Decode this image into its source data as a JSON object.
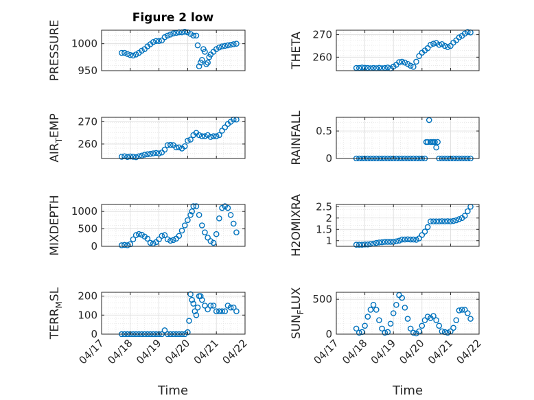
{
  "title": "Figure 2 low",
  "colors": {
    "marker": "#0072BD",
    "axis": "#262626",
    "grid": "#dcdcdc"
  },
  "x_axis": {
    "label": "Time",
    "tick_labels": [
      "04/17",
      "04/18",
      "04/19",
      "04/20",
      "04/21",
      "04/22"
    ],
    "tick_values": [
      0,
      1,
      2,
      3,
      4,
      5
    ]
  },
  "chart_data": [
    {
      "type": "scatter",
      "ylabel": "PRESSURE",
      "ylim": [
        950,
        1025
      ],
      "yticks": [
        950,
        1000
      ],
      "ytick_labels": [
        "950",
        "1000"
      ],
      "x": [
        0.7,
        0.8,
        0.9,
        1.0,
        1.1,
        1.2,
        1.3,
        1.4,
        1.5,
        1.6,
        1.7,
        1.8,
        1.9,
        2.0,
        2.1,
        2.2,
        2.3,
        2.4,
        2.5,
        2.6,
        2.7,
        2.8,
        2.9,
        3.0,
        3.1,
        3.2,
        3.3,
        3.35,
        3.4,
        3.45,
        3.5,
        3.55,
        3.6,
        3.65,
        3.7,
        3.75,
        3.8,
        3.9,
        4.0,
        4.1,
        4.2,
        4.3,
        4.4,
        4.5,
        4.6,
        4.7
      ],
      "y": [
        983,
        983,
        981,
        979,
        978,
        980,
        983,
        987,
        990,
        995,
        999,
        1003,
        1005,
        1005,
        1006,
        1012,
        1015,
        1017,
        1019,
        1020,
        1021,
        1021,
        1022,
        1021,
        1018,
        1015,
        1015,
        997,
        958,
        965,
        970,
        990,
        985,
        962,
        965,
        975,
        980,
        985,
        990,
        993,
        995,
        996,
        997,
        998,
        999,
        1000
      ]
    },
    {
      "type": "scatter",
      "ylabel": "THETA",
      "ylim": [
        254,
        272
      ],
      "yticks": [
        260,
        270
      ],
      "ytick_labels": [
        "260",
        "270"
      ],
      "x": [
        0.7,
        0.8,
        0.9,
        1.0,
        1.1,
        1.2,
        1.3,
        1.4,
        1.5,
        1.6,
        1.7,
        1.8,
        1.9,
        2.0,
        2.1,
        2.2,
        2.3,
        2.4,
        2.5,
        2.6,
        2.7,
        2.8,
        2.9,
        3.0,
        3.1,
        3.2,
        3.3,
        3.4,
        3.5,
        3.6,
        3.7,
        3.8,
        3.9,
        4.0,
        4.1,
        4.2,
        4.3,
        4.4,
        4.5,
        4.6,
        4.7
      ],
      "y": [
        255.2,
        255.2,
        255.4,
        255.3,
        255.2,
        255.1,
        255.2,
        255.1,
        255.3,
        255.1,
        255.2,
        255.4,
        255,
        255.8,
        256.6,
        257.8,
        258,
        257.6,
        257,
        256.2,
        255.7,
        258,
        260.5,
        262,
        263,
        264,
        265.5,
        266,
        266.3,
        265.5,
        265.8,
        265,
        264.5,
        265,
        266.5,
        267.5,
        268.8,
        269.5,
        270.5,
        271.2,
        271
      ]
    },
    {
      "type": "scatter",
      "ylabel": "AIR_TEMP",
      "ylim": [
        253.5,
        272
      ],
      "yticks": [
        260,
        270
      ],
      "ytick_labels": [
        "260",
        "270"
      ],
      "x": [
        0.7,
        0.8,
        0.9,
        1.0,
        1.1,
        1.2,
        1.3,
        1.4,
        1.5,
        1.6,
        1.7,
        1.8,
        1.9,
        2.0,
        2.1,
        2.2,
        2.3,
        2.4,
        2.5,
        2.6,
        2.7,
        2.8,
        2.9,
        3.0,
        3.1,
        3.2,
        3.3,
        3.4,
        3.5,
        3.6,
        3.7,
        3.8,
        3.9,
        4.0,
        4.1,
        4.2,
        4.3,
        4.4,
        4.5,
        4.6,
        4.7
      ],
      "y": [
        254.3,
        254.5,
        254.2,
        254.4,
        254.3,
        254.1,
        254.5,
        254.8,
        255.2,
        255.4,
        255.6,
        255.8,
        256,
        255.8,
        256.2,
        257.5,
        259.5,
        259.6,
        259.5,
        258.5,
        258.5,
        258,
        259,
        261.5,
        262,
        264,
        265,
        264,
        263.5,
        263.5,
        264,
        263.2,
        263.5,
        263.5,
        264,
        266,
        267.5,
        269,
        270,
        271,
        271
      ]
    },
    {
      "type": "scatter",
      "ylabel": "RAINFALL",
      "ylim": [
        0,
        0.75
      ],
      "yticks": [
        0,
        0.5
      ],
      "ytick_labels": [
        "0",
        "0.5"
      ],
      "x": [
        0.7,
        0.8,
        0.9,
        1.0,
        1.1,
        1.2,
        1.3,
        1.4,
        1.5,
        1.6,
        1.7,
        1.8,
        1.9,
        2.0,
        2.1,
        2.2,
        2.3,
        2.4,
        2.5,
        2.6,
        2.7,
        2.8,
        2.9,
        3.0,
        3.1,
        3.15,
        3.2,
        3.25,
        3.3,
        3.35,
        3.4,
        3.45,
        3.5,
        3.55,
        3.6,
        3.7,
        3.8,
        3.9,
        4.0,
        4.1,
        4.2,
        4.3,
        4.4,
        4.5,
        4.6,
        4.7
      ],
      "y": [
        0,
        0,
        0,
        0,
        0,
        0,
        0,
        0,
        0,
        0,
        0,
        0,
        0,
        0,
        0,
        0,
        0,
        0,
        0,
        0,
        0,
        0,
        0,
        0,
        0,
        0.3,
        0.3,
        0.7,
        0.3,
        0.3,
        0.3,
        0.3,
        0.2,
        0.3,
        0,
        0,
        0,
        0,
        0,
        0,
        0,
        0,
        0,
        0,
        0,
        0
      ]
    },
    {
      "type": "scatter",
      "ylabel": "MIXDEPTH",
      "ylim": [
        0,
        1200
      ],
      "yticks": [
        0,
        500,
        1000
      ],
      "ytick_labels": [
        "0",
        "500",
        "1000"
      ],
      "x": [
        0.7,
        0.8,
        0.9,
        1.0,
        1.1,
        1.2,
        1.3,
        1.4,
        1.5,
        1.6,
        1.7,
        1.8,
        1.9,
        2.0,
        2.1,
        2.2,
        2.3,
        2.4,
        2.5,
        2.6,
        2.7,
        2.8,
        2.9,
        3.0,
        3.1,
        3.15,
        3.2,
        3.3,
        3.4,
        3.5,
        3.6,
        3.7,
        3.8,
        3.9,
        4.0,
        4.1,
        4.2,
        4.3,
        4.4,
        4.5,
        4.6,
        4.7
      ],
      "y": [
        30,
        40,
        30,
        60,
        200,
        320,
        350,
        330,
        280,
        220,
        100,
        80,
        120,
        200,
        300,
        320,
        200,
        160,
        180,
        220,
        300,
        450,
        600,
        750,
        900,
        1000,
        1150,
        1150,
        900,
        600,
        400,
        250,
        150,
        100,
        350,
        800,
        1100,
        1150,
        1100,
        900,
        650,
        400
      ]
    },
    {
      "type": "scatter",
      "ylabel": "H2OMIXRA",
      "ylim": [
        0.75,
        2.6
      ],
      "yticks": [
        1,
        1.5,
        2,
        2.5
      ],
      "ytick_labels": [
        "1",
        "1.5",
        "2",
        "2.5"
      ],
      "x": [
        0.7,
        0.8,
        0.9,
        1.0,
        1.1,
        1.2,
        1.3,
        1.4,
        1.5,
        1.6,
        1.7,
        1.8,
        1.9,
        2.0,
        2.1,
        2.2,
        2.3,
        2.4,
        2.5,
        2.6,
        2.7,
        2.8,
        2.9,
        3.0,
        3.1,
        3.2,
        3.3,
        3.4,
        3.5,
        3.6,
        3.7,
        3.8,
        3.9,
        4.0,
        4.1,
        4.2,
        4.3,
        4.4,
        4.5,
        4.6,
        4.7
      ],
      "y": [
        0.82,
        0.82,
        0.82,
        0.83,
        0.83,
        0.85,
        0.87,
        0.9,
        0.92,
        0.93,
        0.95,
        0.95,
        0.95,
        0.95,
        0.97,
        1.0,
        1.05,
        1.05,
        1.06,
        1.05,
        1.05,
        1.04,
        1.1,
        1.25,
        1.4,
        1.6,
        1.85,
        1.85,
        1.85,
        1.85,
        1.86,
        1.85,
        1.86,
        1.85,
        1.87,
        1.9,
        1.95,
        2.0,
        2.1,
        2.3,
        2.5
      ]
    },
    {
      "type": "scatter",
      "ylabel": "TERR_MSL",
      "ylim": [
        0,
        220
      ],
      "yticks": [
        0,
        100,
        200
      ],
      "ytick_labels": [
        "0",
        "100",
        "200"
      ],
      "x": [
        0.7,
        0.8,
        0.9,
        1.0,
        1.1,
        1.2,
        1.3,
        1.4,
        1.5,
        1.6,
        1.7,
        1.8,
        1.9,
        2.0,
        2.1,
        2.2,
        2.3,
        2.4,
        2.5,
        2.6,
        2.7,
        2.8,
        2.9,
        3.0,
        3.05,
        3.1,
        3.15,
        3.2,
        3.25,
        3.3,
        3.35,
        3.4,
        3.45,
        3.5,
        3.6,
        3.7,
        3.8,
        3.9,
        4.0,
        4.1,
        4.2,
        4.3,
        4.4,
        4.5,
        4.6,
        4.7
      ],
      "y": [
        0,
        0,
        0,
        0,
        0,
        0,
        0,
        0,
        0,
        0,
        0,
        0,
        0,
        0,
        0,
        20,
        0,
        0,
        0,
        0,
        0,
        0,
        0,
        10,
        70,
        210,
        180,
        160,
        120,
        100,
        140,
        200,
        200,
        180,
        150,
        130,
        150,
        150,
        120,
        120,
        120,
        120,
        150,
        140,
        140,
        120
      ]
    },
    {
      "type": "scatter",
      "ylabel": "SUN_FLUX",
      "ylim": [
        0,
        600
      ],
      "yticks": [
        0,
        500
      ],
      "ytick_labels": [
        "0",
        "500"
      ],
      "x": [
        0.7,
        0.8,
        0.9,
        1.0,
        1.1,
        1.2,
        1.3,
        1.4,
        1.5,
        1.6,
        1.7,
        1.8,
        1.9,
        2.0,
        2.1,
        2.2,
        2.3,
        2.4,
        2.5,
        2.6,
        2.7,
        2.8,
        2.9,
        3.0,
        3.1,
        3.2,
        3.3,
        3.4,
        3.5,
        3.6,
        3.7,
        3.8,
        3.9,
        4.0,
        4.1,
        4.2,
        4.3,
        4.4,
        4.5,
        4.6,
        4.7
      ],
      "y": [
        80,
        20,
        30,
        120,
        250,
        350,
        420,
        350,
        200,
        80,
        20,
        30,
        150,
        300,
        420,
        560,
        520,
        380,
        220,
        80,
        20,
        10,
        40,
        120,
        200,
        250,
        230,
        260,
        200,
        120,
        40,
        30,
        20,
        40,
        90,
        200,
        340,
        350,
        350,
        300,
        220
      ]
    }
  ]
}
